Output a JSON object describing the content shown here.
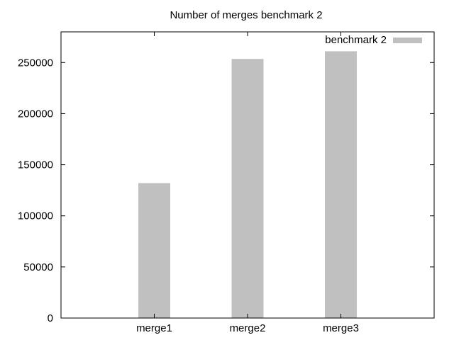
{
  "chart_data": {
    "type": "bar",
    "title": "Number of merges benchmark 2",
    "xlabel": "",
    "ylabel": "",
    "categories": [
      "merge1",
      "merge2",
      "merge3"
    ],
    "series": [
      {
        "name": "benchmark 2",
        "values": [
          132000,
          253500,
          261000
        ],
        "color": "#c0c0c0"
      }
    ],
    "ylim": [
      0,
      280000
    ],
    "yticks": [
      0,
      50000,
      100000,
      150000,
      200000,
      250000
    ],
    "ytick_labels": [
      "0",
      "50000",
      "100000",
      "150000",
      "200000",
      "250000"
    ],
    "grid": false,
    "legend_position": "top-right"
  }
}
